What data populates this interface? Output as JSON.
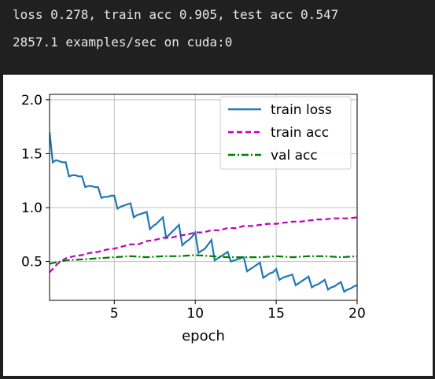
{
  "console": {
    "lines": [
      "loss 0.278, train acc 0.905, test acc 0.547",
      "2857.1 examples/sec on cuda:0"
    ]
  },
  "colors": {
    "console_bg": "#202020",
    "console_text": "#e6e6e6",
    "train_loss": "#1f77b4",
    "train_acc": "#bf00bf",
    "val_acc": "#008000",
    "grid": "#c0c0c0"
  },
  "chart_data": {
    "type": "line",
    "xlabel": "epoch",
    "ylabel": "",
    "xlim": [
      1,
      20
    ],
    "ylim": [
      0.14,
      2.05
    ],
    "xticks": [
      5,
      10,
      15,
      20
    ],
    "yticks": [
      0.5,
      1.0,
      1.5,
      2.0
    ],
    "xtick_labels": [
      "5",
      "10",
      "15",
      "20"
    ],
    "ytick_labels": [
      "0.5",
      "1.0",
      "1.5",
      "2.0"
    ],
    "grid": true,
    "legend": "top-right",
    "series": [
      {
        "name": "train loss",
        "style": "solid",
        "x": [
          1.0,
          1.2,
          1.4,
          1.6,
          1.8,
          2.0,
          2.2,
          2.4,
          2.6,
          2.8,
          3.0,
          3.2,
          3.4,
          3.6,
          3.8,
          4.0,
          4.2,
          4.4,
          4.6,
          4.8,
          5.0,
          5.2,
          5.4,
          5.6,
          5.8,
          6.0,
          6.2,
          6.4,
          6.6,
          6.8,
          7.0,
          7.2,
          7.4,
          7.6,
          7.8,
          8.0,
          8.2,
          8.4,
          8.6,
          8.8,
          9.0,
          9.2,
          9.4,
          9.6,
          9.8,
          10.0,
          10.2,
          10.4,
          10.6,
          10.8,
          11.0,
          11.2,
          11.4,
          11.6,
          11.8,
          12.0,
          12.2,
          12.4,
          12.6,
          12.8,
          13.0,
          13.2,
          13.4,
          13.6,
          13.8,
          14.0,
          14.2,
          14.4,
          14.6,
          14.8,
          15.0,
          15.2,
          15.4,
          15.6,
          15.8,
          16.0,
          16.2,
          16.4,
          16.6,
          16.8,
          17.0,
          17.2,
          17.4,
          17.6,
          17.8,
          18.0,
          18.2,
          18.4,
          18.6,
          18.8,
          19.0,
          19.2,
          19.4,
          19.6,
          19.8,
          20.0
        ],
        "y": [
          1.7,
          1.42,
          1.44,
          1.43,
          1.42,
          1.42,
          1.29,
          1.3,
          1.3,
          1.29,
          1.29,
          1.19,
          1.2,
          1.2,
          1.19,
          1.19,
          1.09,
          1.1,
          1.1,
          1.11,
          1.11,
          0.99,
          1.01,
          1.02,
          1.03,
          1.04,
          0.91,
          0.93,
          0.94,
          0.95,
          0.96,
          0.8,
          0.83,
          0.85,
          0.88,
          0.91,
          0.72,
          0.75,
          0.78,
          0.81,
          0.84,
          0.65,
          0.68,
          0.7,
          0.73,
          0.77,
          0.58,
          0.6,
          0.62,
          0.66,
          0.7,
          0.51,
          0.53,
          0.55,
          0.57,
          0.59,
          0.5,
          0.51,
          0.52,
          0.53,
          0.54,
          0.41,
          0.43,
          0.45,
          0.47,
          0.49,
          0.35,
          0.37,
          0.39,
          0.4,
          0.43,
          0.33,
          0.35,
          0.36,
          0.37,
          0.38,
          0.28,
          0.3,
          0.32,
          0.34,
          0.36,
          0.26,
          0.28,
          0.29,
          0.31,
          0.33,
          0.24,
          0.26,
          0.27,
          0.29,
          0.31,
          0.22,
          0.24,
          0.25,
          0.27,
          0.28
        ]
      },
      {
        "name": "train acc",
        "style": "dashed",
        "x": [
          1.0,
          1.5,
          2.0,
          2.5,
          3.0,
          3.5,
          4.0,
          4.5,
          5.0,
          5.5,
          6.0,
          6.5,
          7.0,
          7.5,
          8.0,
          8.5,
          9.0,
          9.5,
          10.0,
          10.5,
          11.0,
          11.5,
          12.0,
          12.5,
          13.0,
          13.5,
          14.0,
          14.5,
          15.0,
          15.5,
          16.0,
          16.5,
          17.0,
          17.5,
          18.0,
          18.5,
          19.0,
          19.5,
          20.0
        ],
        "y": [
          0.4,
          0.48,
          0.53,
          0.55,
          0.56,
          0.58,
          0.59,
          0.61,
          0.62,
          0.64,
          0.66,
          0.66,
          0.69,
          0.7,
          0.72,
          0.72,
          0.74,
          0.75,
          0.77,
          0.77,
          0.79,
          0.79,
          0.81,
          0.81,
          0.83,
          0.83,
          0.84,
          0.85,
          0.85,
          0.86,
          0.87,
          0.87,
          0.88,
          0.89,
          0.89,
          0.9,
          0.9,
          0.9,
          0.91
        ]
      },
      {
        "name": "val acc",
        "style": "dashdot",
        "x": [
          1,
          2,
          3,
          4,
          5,
          6,
          7,
          8,
          9,
          10,
          11,
          12,
          13,
          14,
          15,
          16,
          17,
          18,
          19,
          20
        ],
        "y": [
          0.48,
          0.51,
          0.52,
          0.53,
          0.54,
          0.55,
          0.54,
          0.55,
          0.55,
          0.56,
          0.55,
          0.54,
          0.54,
          0.54,
          0.55,
          0.54,
          0.55,
          0.55,
          0.54,
          0.55
        ]
      }
    ]
  }
}
